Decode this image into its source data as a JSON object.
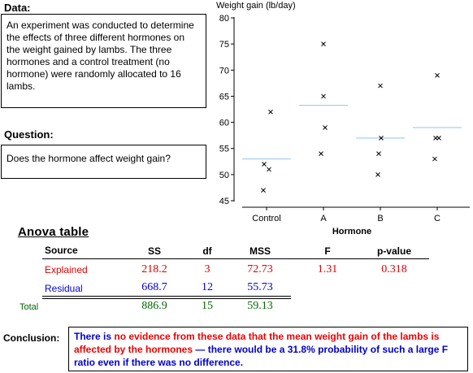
{
  "data_section": {
    "heading": "Data:",
    "text": "An experiment was conducted to determine the effects of three different hormones on the weight gained by lambs. The three hormones and a control treatment (no hormone) were randomly allocated to 16 lambs."
  },
  "question_section": {
    "heading": "Question:",
    "text": "Does the hormone affect weight gain?"
  },
  "chart_data": {
    "type": "scatter",
    "ylabel": "Weight gain (lb/day)",
    "xlabel": "Hormone",
    "categories": [
      "Control",
      "A",
      "B",
      "C"
    ],
    "ylim": [
      45,
      80
    ],
    "yticks": [
      45,
      50,
      55,
      60,
      65,
      70,
      75,
      80
    ],
    "points": [
      {
        "group": "Control",
        "values": [
          62,
          52,
          51,
          47
        ]
      },
      {
        "group": "A",
        "values": [
          75,
          65,
          59,
          54
        ]
      },
      {
        "group": "B",
        "values": [
          67,
          57,
          54,
          50
        ]
      },
      {
        "group": "C",
        "values": [
          69,
          57,
          57,
          53
        ]
      }
    ],
    "group_means": [
      53,
      63.25,
      57,
      59
    ],
    "point_color": "#000000",
    "mean_line_color": "#8ec8e8"
  },
  "anova": {
    "title": "Anova table",
    "headers": {
      "source": "Source",
      "ss": "SS",
      "df": "df",
      "mss": "MSS",
      "f": "F",
      "p": "p-value"
    },
    "explained": {
      "source": "Explained",
      "ss": "218.2",
      "df": "3",
      "mss": "72.73",
      "f": "1.31",
      "p": "0.318"
    },
    "residual": {
      "source": "Residual",
      "ss": "668.7",
      "df": "12",
      "mss": "55.73"
    },
    "total": {
      "source": "Total",
      "ss": "886.9",
      "df": "15",
      "mss": "59.13"
    },
    "colors": {
      "explained": "#e00000",
      "residual": "#0000e0",
      "total": "#006600"
    }
  },
  "conclusion": {
    "heading": "Conclusion:",
    "part1": "There is ",
    "part2": "no evidence from these data that the mean weight gain of the lambs is affected by the hormones",
    "part3": " — there would be a 31.8% probability of such a large F ratio even if there was no difference."
  }
}
